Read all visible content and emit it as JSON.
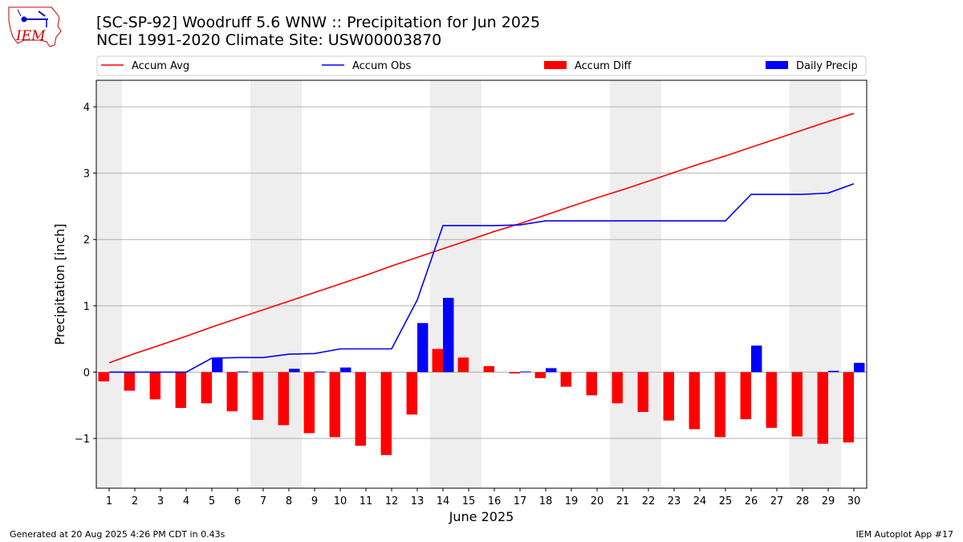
{
  "header": {
    "title_line1": "[SC-SP-92] Woodruff 5.6 WNW :: Precipitation for Jun 2025",
    "title_line2": "NCEI 1991-2020 Climate Site: USW00003870",
    "logo_text": "IEM"
  },
  "footer": {
    "left": "Generated at 20 Aug 2025 4:26 PM CDT in 0.43s",
    "right": "IEM Autoplot App #17"
  },
  "colors": {
    "accum_avg": "#ff0000",
    "accum_obs": "#0000ff",
    "accum_diff": "#ff0000",
    "daily_precip": "#0000ff",
    "weekend_shade": "#eeeeee",
    "grid": "#b0b0b0"
  },
  "chart_data": {
    "type": "bar",
    "xlabel": "June 2025",
    "ylabel": "Precipitation [inch]",
    "ylim": [
      -1.75,
      4.4
    ],
    "yticks": [
      -1,
      0,
      1,
      2,
      3,
      4
    ],
    "ytick_labels": [
      "−1",
      "0",
      "1",
      "2",
      "3",
      "4"
    ],
    "grid": "horizontal",
    "legend_position": "top",
    "shaded_weekends": [
      [
        0.5,
        1.5
      ],
      [
        6.5,
        8.5
      ],
      [
        13.5,
        15.5
      ],
      [
        20.5,
        22.5
      ],
      [
        27.5,
        29.5
      ]
    ],
    "x": [
      1,
      2,
      3,
      4,
      5,
      6,
      7,
      8,
      9,
      10,
      11,
      12,
      13,
      14,
      15,
      16,
      17,
      18,
      19,
      20,
      21,
      22,
      23,
      24,
      25,
      26,
      27,
      28,
      29,
      30
    ],
    "series": [
      {
        "name": "Accum Avg",
        "type": "line",
        "values": [
          0.14,
          0.28,
          0.41,
          0.54,
          0.68,
          0.81,
          0.94,
          1.07,
          1.2,
          1.33,
          1.46,
          1.6,
          1.73,
          1.86,
          1.99,
          2.12,
          2.24,
          2.37,
          2.5,
          2.63,
          2.75,
          2.88,
          3.01,
          3.14,
          3.26,
          3.39,
          3.52,
          3.65,
          3.78,
          3.9
        ]
      },
      {
        "name": "Accum Obs",
        "type": "line",
        "values": [
          0.0,
          0.0,
          0.0,
          0.0,
          0.21,
          0.22,
          0.22,
          0.27,
          0.28,
          0.35,
          0.35,
          0.35,
          1.09,
          2.21,
          2.21,
          2.21,
          2.22,
          2.28,
          2.28,
          2.28,
          2.28,
          2.28,
          2.28,
          2.28,
          2.28,
          2.68,
          2.68,
          2.68,
          2.7,
          2.84
        ]
      },
      {
        "name": "Accum Diff",
        "type": "bar",
        "values": [
          -0.14,
          -0.28,
          -0.41,
          -0.54,
          -0.47,
          -0.59,
          -0.72,
          -0.8,
          -0.92,
          -0.98,
          -1.11,
          -1.25,
          -0.64,
          0.35,
          0.22,
          0.09,
          -0.02,
          -0.09,
          -0.22,
          -0.35,
          -0.47,
          -0.6,
          -0.73,
          -0.86,
          -0.98,
          -0.71,
          -0.84,
          -0.97,
          -1.08,
          -1.06
        ]
      },
      {
        "name": "Daily Precip",
        "type": "bar",
        "values": [
          0.0,
          0.0,
          0.0,
          0.0,
          0.21,
          0.01,
          0.0,
          0.05,
          0.01,
          0.07,
          0.0,
          0.0,
          0.74,
          1.12,
          0.0,
          0.0,
          0.01,
          0.06,
          0.0,
          0.0,
          0.0,
          0.0,
          0.0,
          0.0,
          0.0,
          0.4,
          0.0,
          0.0,
          0.02,
          0.14
        ]
      }
    ]
  }
}
